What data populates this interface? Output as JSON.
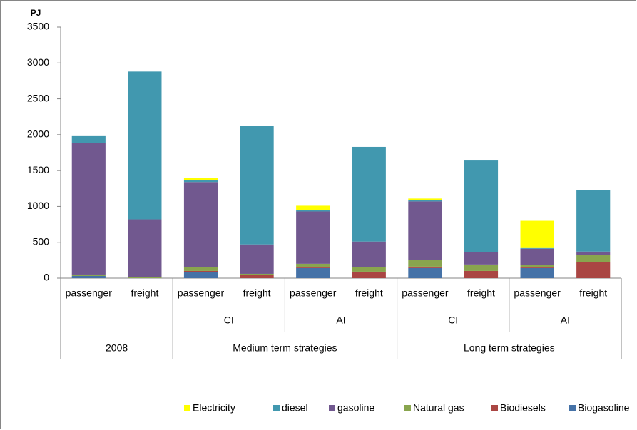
{
  "chart_data": {
    "type": "bar",
    "stacked": true,
    "y_label": "PJ",
    "ylim": [
      0,
      3500
    ],
    "yticks": [
      0,
      500,
      1000,
      1500,
      2000,
      2500,
      3000,
      3500
    ],
    "groups": [
      {
        "label": "2008",
        "subgroups": [
          {
            "label": null,
            "categories": [
              "passenger",
              "freight"
            ]
          }
        ]
      },
      {
        "label": "Medium term strategies",
        "subgroups": [
          {
            "label": "CI",
            "categories": [
              "passenger",
              "freight"
            ]
          },
          {
            "label": "AI",
            "categories": [
              "passenger",
              "freight"
            ]
          }
        ]
      },
      {
        "label": "Long term strategies",
        "subgroups": [
          {
            "label": "CI",
            "categories": [
              "passenger",
              "freight"
            ]
          },
          {
            "label": "AI",
            "categories": [
              "passenger",
              "freight"
            ]
          }
        ]
      }
    ],
    "series": [
      {
        "name": "Electricity",
        "color": "#ffff00",
        "values": [
          0,
          0,
          30,
          0,
          60,
          0,
          20,
          0,
          380,
          0
        ]
      },
      {
        "name": "diesel",
        "color": "#4198af",
        "values": [
          100,
          2060,
          30,
          1650,
          20,
          1320,
          20,
          1280,
          10,
          860
        ]
      },
      {
        "name": "gasoline",
        "color": "#71588f",
        "values": [
          1830,
          805,
          1190,
          410,
          730,
          360,
          820,
          170,
          230,
          50
        ]
      },
      {
        "name": "Natural gas",
        "color": "#89a54e",
        "values": [
          20,
          15,
          50,
          20,
          50,
          60,
          90,
          90,
          30,
          100
        ]
      },
      {
        "name": "Biodiesels",
        "color": "#aa4643",
        "values": [
          0,
          0,
          20,
          40,
          10,
          90,
          20,
          100,
          10,
          220
        ]
      },
      {
        "name": "Biogasoline",
        "color": "#4572a7",
        "values": [
          30,
          0,
          80,
          0,
          140,
          0,
          140,
          0,
          140,
          0
        ]
      }
    ],
    "legend": "bottom"
  }
}
